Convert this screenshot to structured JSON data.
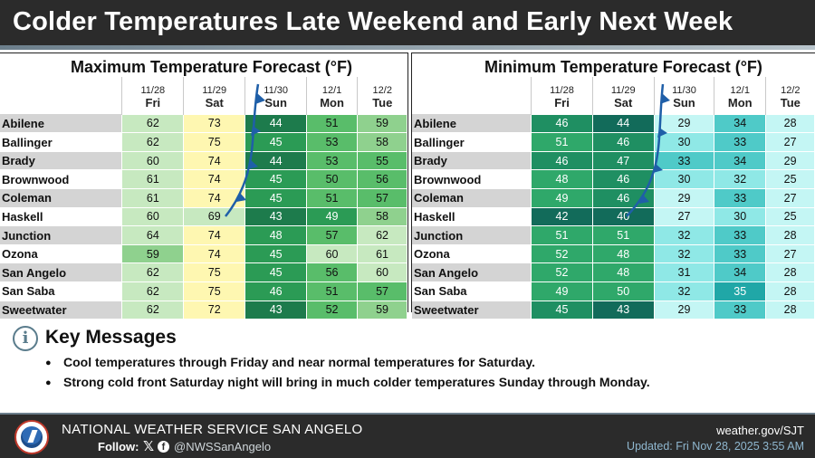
{
  "title": "Colder Temperatures Late Weekend and Early Next Week",
  "max_table": {
    "title": "Maximum Temperature Forecast (°F)",
    "columns": [
      {
        "date": "11/28",
        "day": "Fri"
      },
      {
        "date": "11/29",
        "day": "Sat"
      },
      {
        "date": "11/30",
        "day": "Sun"
      },
      {
        "date": "12/1",
        "day": "Mon"
      },
      {
        "date": "12/2",
        "day": "Tue"
      }
    ],
    "rows": [
      {
        "city": "Abilene",
        "values": [
          62,
          73,
          44,
          51,
          59
        ]
      },
      {
        "city": "Ballinger",
        "values": [
          62,
          75,
          45,
          53,
          58
        ]
      },
      {
        "city": "Brady",
        "values": [
          60,
          74,
          44,
          53,
          55
        ]
      },
      {
        "city": "Brownwood",
        "values": [
          61,
          74,
          45,
          50,
          56
        ]
      },
      {
        "city": "Coleman",
        "values": [
          61,
          74,
          45,
          51,
          57
        ]
      },
      {
        "city": "Haskell",
        "values": [
          60,
          69,
          43,
          49,
          58
        ]
      },
      {
        "city": "Junction",
        "values": [
          64,
          74,
          48,
          57,
          62
        ]
      },
      {
        "city": "Ozona",
        "values": [
          59,
          74,
          45,
          60,
          61
        ]
      },
      {
        "city": "San Angelo",
        "values": [
          62,
          75,
          45,
          56,
          60
        ]
      },
      {
        "city": "San Saba",
        "values": [
          62,
          75,
          46,
          51,
          57
        ]
      },
      {
        "city": "Sweetwater",
        "values": [
          62,
          72,
          43,
          52,
          59
        ]
      }
    ]
  },
  "min_table": {
    "title": "Minimum Temperature Forecast (°F)",
    "columns": [
      {
        "date": "11/28",
        "day": "Fri"
      },
      {
        "date": "11/29",
        "day": "Sat"
      },
      {
        "date": "11/30",
        "day": "Sun"
      },
      {
        "date": "12/1",
        "day": "Mon"
      },
      {
        "date": "12/2",
        "day": "Tue"
      }
    ],
    "rows": [
      {
        "city": "Abilene",
        "values": [
          46,
          44,
          29,
          34,
          28
        ]
      },
      {
        "city": "Ballinger",
        "values": [
          51,
          46,
          30,
          33,
          27
        ]
      },
      {
        "city": "Brady",
        "values": [
          46,
          47,
          33,
          34,
          29
        ]
      },
      {
        "city": "Brownwood",
        "values": [
          48,
          46,
          30,
          32,
          25
        ]
      },
      {
        "city": "Coleman",
        "values": [
          49,
          46,
          29,
          33,
          27
        ]
      },
      {
        "city": "Haskell",
        "values": [
          42,
          40,
          27,
          30,
          25
        ]
      },
      {
        "city": "Junction",
        "values": [
          51,
          51,
          32,
          33,
          28
        ]
      },
      {
        "city": "Ozona",
        "values": [
          52,
          48,
          32,
          33,
          27
        ]
      },
      {
        "city": "San Angelo",
        "values": [
          52,
          48,
          31,
          34,
          28
        ]
      },
      {
        "city": "San Saba",
        "values": [
          49,
          50,
          32,
          35,
          28
        ]
      },
      {
        "city": "Sweetwater",
        "values": [
          45,
          43,
          29,
          33,
          28
        ]
      }
    ]
  },
  "key_messages": {
    "title": "Key Messages",
    "items": [
      "Cool temperatures through Friday and near normal temperatures for Saturday.",
      "Strong cold front Saturday night will bring in much colder temperatures Sunday through Monday."
    ]
  },
  "footer": {
    "office": "NATIONAL WEATHER SERVICE SAN ANGELO",
    "follow_label": "Follow:",
    "handle": "@NWSSanAngelo",
    "website": "weather.gov/SJT",
    "updated": "Updated: Fri Nov 28, 2025 3:55 AM"
  },
  "colors": {
    "header_bg": "#2b2b2b",
    "front_blue": "#1f5fa8"
  },
  "icons": {
    "info": "info-icon",
    "x": "x-icon",
    "facebook": "facebook-icon",
    "logo": "nws-logo"
  }
}
